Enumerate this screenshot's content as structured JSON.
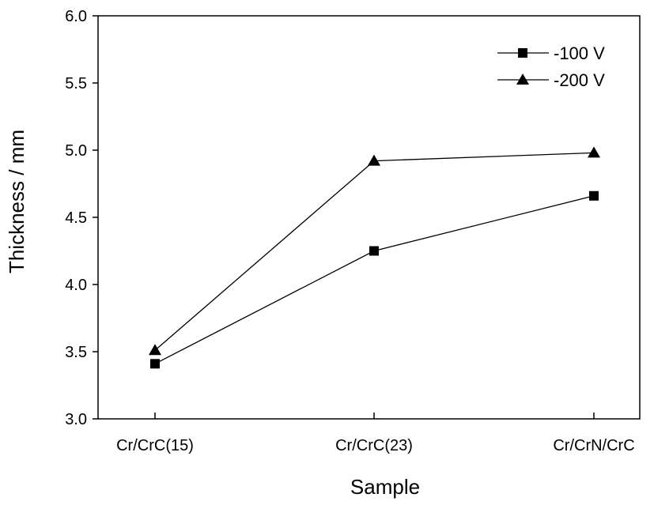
{
  "chart_data": {
    "type": "line",
    "title": "",
    "xlabel": "Sample",
    "ylabel": "Thickness / mm",
    "categories": [
      "Cr/CrC(15)",
      "Cr/CrC(23)",
      "Cr/CrN/CrC"
    ],
    "ylim": [
      3.0,
      6.0
    ],
    "yticks": [
      "3.0",
      "3.5",
      "4.0",
      "4.5",
      "5.0",
      "5.5",
      "6.0"
    ],
    "grid": false,
    "legend_position": "top-right",
    "series": [
      {
        "name": "-100 V",
        "marker": "square",
        "values": [
          3.41,
          4.25,
          4.66
        ]
      },
      {
        "name": "-200 V",
        "marker": "triangle",
        "values": [
          3.51,
          4.92,
          4.98
        ]
      }
    ]
  }
}
